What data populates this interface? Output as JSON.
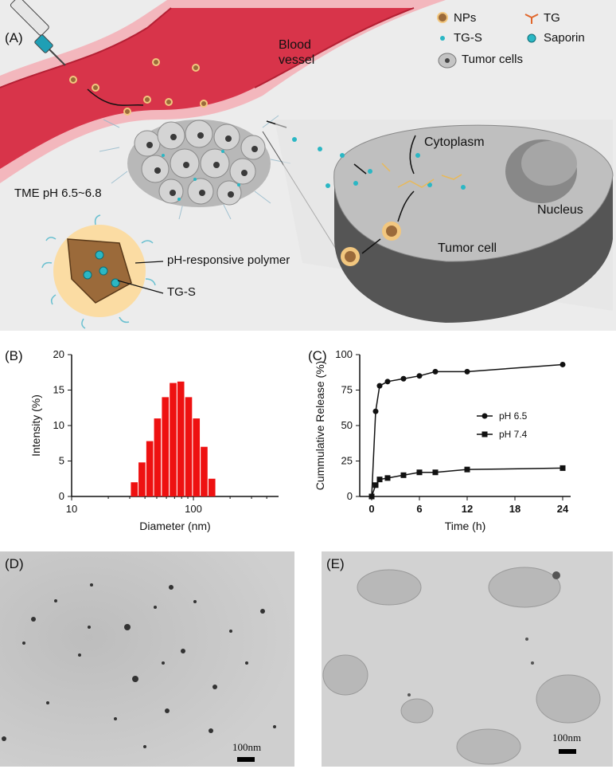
{
  "panels": {
    "a": "(A)",
    "b": "(B)",
    "c": "(C)",
    "d": "(D)",
    "e": "(E)"
  },
  "schematic": {
    "legend": {
      "nps": "NPs",
      "tg": "TG",
      "tgs": "TG-S",
      "saporin": "Saporin",
      "tumor_cells": "Tumor cells"
    },
    "blood_vessel_line1": "Blood",
    "blood_vessel_line2": "vessel",
    "tme": "TME pH 6.5~6.8",
    "cytoplasm": "Cytoplasm",
    "nucleus": "Nucleus",
    "tumor_cell": "Tumor cell",
    "ph_polymer": "pH-responsive polymer",
    "np_tgs": "TG-S"
  },
  "chart_data": [
    {
      "type": "bar",
      "panel": "(B)",
      "xlabel": "Diameter (nm)",
      "ylabel": "Intensity (%)",
      "x_scale": "log",
      "xlim": [
        10,
        500
      ],
      "ylim": [
        0,
        20
      ],
      "xticks": [
        "10",
        "100"
      ],
      "yticks": [
        "0",
        "5",
        "10",
        "15",
        "20"
      ],
      "bar_color": "#ee1111",
      "categories": [
        32.7,
        37.8,
        43.8,
        50.7,
        58.8,
        68.1,
        78.8,
        91.3,
        105.7,
        122.4,
        141.8
      ],
      "values": [
        2.0,
        4.8,
        7.8,
        11.0,
        14.0,
        16.0,
        16.2,
        14.0,
        11.0,
        7.0,
        2.5
      ]
    },
    {
      "type": "line",
      "panel": "(C)",
      "xlabel": "Time (h)",
      "ylabel": "Cummulative Release (%)",
      "xlim": [
        -1.5,
        25
      ],
      "ylim": [
        0,
        100
      ],
      "xticks": [
        "0",
        "6",
        "12",
        "18",
        "24"
      ],
      "yticks": [
        "0",
        "25",
        "50",
        "75",
        "100"
      ],
      "legend_position": "center-right",
      "series": [
        {
          "name": "pH 6.5",
          "marker": "circle",
          "x": [
            0,
            0.5,
            1,
            2,
            4,
            6,
            8,
            12,
            24
          ],
          "y": [
            0,
            60,
            78,
            81,
            83,
            85,
            88,
            88,
            93
          ]
        },
        {
          "name": "pH 7.4",
          "marker": "square",
          "x": [
            0,
            0.5,
            1,
            2,
            4,
            6,
            8,
            12,
            24
          ],
          "y": [
            0,
            8,
            12,
            13,
            15,
            17,
            17,
            19,
            20
          ]
        }
      ]
    }
  ],
  "tem": {
    "d_scale": "100nm",
    "e_scale": "100nm"
  },
  "colors": {
    "vessel": "#d8344a",
    "vessel_wall": "#f3b7bd",
    "tgs": "#2bb7c4",
    "saporin": "#1fb2b8",
    "np_core": "#9b6a3a",
    "np_shell": "#f2c77f",
    "cell_body": "#5d5d5d",
    "tem_bg": "#c9c9c9"
  }
}
